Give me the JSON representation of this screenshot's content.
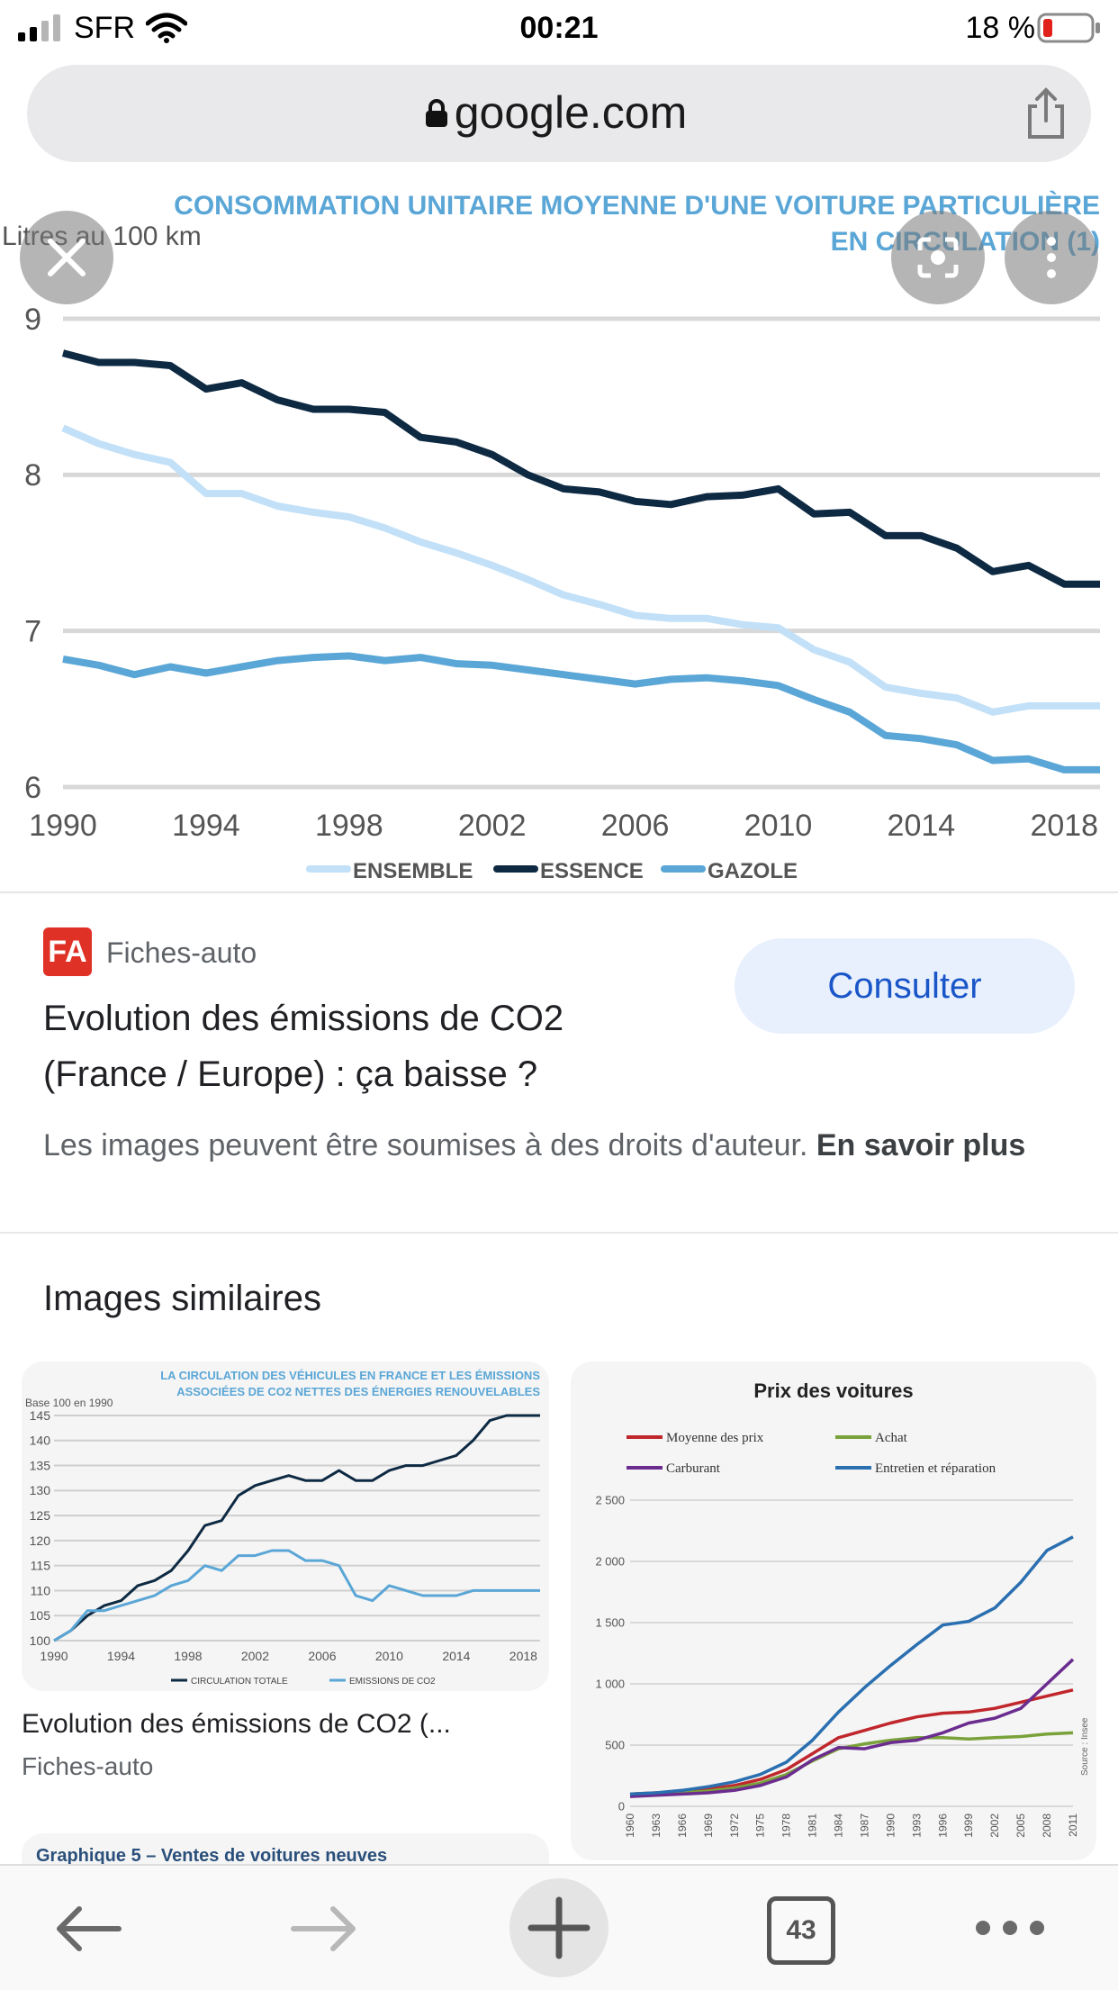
{
  "status_bar": {
    "carrier": "SFR",
    "time": "00:21",
    "battery": "18 %"
  },
  "browser": {
    "url": "google.com",
    "tab_count": "43"
  },
  "viewer": {
    "chart_data": {
      "type": "line",
      "title_line1": "CONSOMMATION UNITAIRE MOYENNE D'UNE VOITURE PARTICULIÈRE",
      "title_line2": "EN CIRCULATION (1)",
      "ylabel": "Litres au 100 km",
      "ylim": [
        6,
        9
      ],
      "yticks": [
        "9",
        "8",
        "7",
        "6"
      ],
      "xticks": [
        "1990",
        "1994",
        "1998",
        "2002",
        "2006",
        "2010",
        "2014",
        "2018"
      ],
      "x": [
        1990,
        1991,
        1992,
        1993,
        1994,
        1995,
        1996,
        1997,
        1998,
        1999,
        2000,
        2001,
        2002,
        2003,
        2004,
        2005,
        2006,
        2007,
        2008,
        2009,
        2010,
        2011,
        2012,
        2013,
        2014,
        2015,
        2016,
        2017,
        2018,
        2019
      ],
      "series": [
        {
          "name": "ENSEMBLE",
          "color": "#c2e0f7",
          "values": [
            8.3,
            8.2,
            8.13,
            8.08,
            7.88,
            7.88,
            7.8,
            7.76,
            7.73,
            7.66,
            7.57,
            7.5,
            7.42,
            7.33,
            7.23,
            7.17,
            7.1,
            7.08,
            7.08,
            7.04,
            7.02,
            6.88,
            6.8,
            6.64,
            6.6,
            6.57,
            6.48,
            6.52,
            6.52,
            6.52
          ]
        },
        {
          "name": "ESSENCE",
          "color": "#0e2a43",
          "values": [
            8.78,
            8.72,
            8.72,
            8.7,
            8.55,
            8.59,
            8.48,
            8.42,
            8.42,
            8.4,
            8.24,
            8.21,
            8.13,
            8.0,
            7.91,
            7.89,
            7.83,
            7.81,
            7.86,
            7.87,
            7.91,
            7.75,
            7.76,
            7.61,
            7.61,
            7.53,
            7.38,
            7.42,
            7.3,
            7.3
          ]
        },
        {
          "name": "GAZOLE",
          "color": "#5aa6d6",
          "values": [
            6.82,
            6.78,
            6.72,
            6.77,
            6.73,
            6.77,
            6.81,
            6.83,
            6.84,
            6.81,
            6.83,
            6.79,
            6.78,
            6.75,
            6.72,
            6.69,
            6.66,
            6.69,
            6.7,
            6.68,
            6.65,
            6.56,
            6.48,
            6.33,
            6.31,
            6.27,
            6.17,
            6.18,
            6.11,
            6.11
          ]
        }
      ]
    }
  },
  "result": {
    "source": "Fiches-auto",
    "source_logo": "FA",
    "consult_label": "Consulter",
    "title_line1": "Evolution des émissions de CO2",
    "title_line2": "(France / Europe) : ça baisse ?",
    "notice": "Les images peuvent être soumises à des droits d'auteur.",
    "notice_link": "En savoir plus"
  },
  "similar": {
    "heading": "Images similaires",
    "card1": {
      "caption": "Evolution des émissions de CO2 (...",
      "source": "Fiches-auto",
      "chart_data": {
        "type": "line",
        "title_line1": "LA CIRCULATION DES VÉHICULES EN FRANCE ET LES ÉMISSIONS",
        "title_line2": "ASSOCIÉES DE CO2 NETTES DES ÉNERGIES RENOUVELABLES",
        "ylabel": "Base 100 en 1990",
        "ylim": [
          100,
          145
        ],
        "yticks": [
          "145",
          "140",
          "135",
          "130",
          "125",
          "120",
          "115",
          "110",
          "105",
          "100"
        ],
        "xticks": [
          "1990",
          "1994",
          "1998",
          "2002",
          "2006",
          "2010",
          "2014",
          "2018"
        ],
        "x": [
          1990,
          1991,
          1992,
          1993,
          1994,
          1995,
          1996,
          1997,
          1998,
          1999,
          2000,
          2001,
          2002,
          2003,
          2004,
          2005,
          2006,
          2007,
          2008,
          2009,
          2010,
          2011,
          2012,
          2013,
          2014,
          2015,
          2016,
          2017,
          2018,
          2019
        ],
        "series": [
          {
            "name": "CIRCULATION TOTALE",
            "color": "#0e2a43",
            "values": [
              100,
              102,
              105,
              107,
              108,
              111,
              112,
              114,
              118,
              123,
              124,
              129,
              131,
              132,
              133,
              132,
              132,
              134,
              132,
              132,
              134,
              135,
              135,
              136,
              137,
              140,
              144,
              145,
              145,
              145
            ]
          },
          {
            "name": "EMISSIONS DE CO2",
            "color": "#5aa6d6",
            "values": [
              100,
              102,
              106,
              106,
              107,
              108,
              109,
              111,
              112,
              115,
              114,
              117,
              117,
              118,
              118,
              116,
              116,
              115,
              109,
              108,
              111,
              110,
              109,
              109,
              109,
              110,
              110,
              110,
              110,
              110
            ]
          }
        ]
      }
    },
    "card2": {
      "chart_data": {
        "type": "line",
        "title": "Prix des voitures",
        "ylim": [
          0,
          2500
        ],
        "yticks": [
          "2 500",
          "2 000",
          "1 500",
          "1 000",
          "500",
          "0"
        ],
        "xticks": [
          "1960",
          "1963",
          "1966",
          "1969",
          "1972",
          "1975",
          "1978",
          "1981",
          "1984",
          "1987",
          "1990",
          "1993",
          "1996",
          "1999",
          "2002",
          "2005",
          "2008",
          "2011"
        ],
        "source_label": "Source : Insee",
        "x": [
          1960,
          1963,
          1966,
          1969,
          1972,
          1975,
          1978,
          1981,
          1984,
          1987,
          1990,
          1993,
          1996,
          1999,
          2002,
          2005,
          2008,
          2011
        ],
        "series": [
          {
            "name": "Moyenne des prix",
            "color": "#c0272d",
            "values": [
              100,
              110,
              120,
              140,
              170,
              220,
              300,
              430,
              560,
              620,
              680,
              730,
              760,
              770,
              800,
              850,
              900,
              950
            ]
          },
          {
            "name": "Achat",
            "color": "#7aa23a",
            "values": [
              100,
              105,
              110,
              125,
              150,
              190,
              260,
              370,
              470,
              510,
              540,
              560,
              560,
              550,
              560,
              570,
              590,
              600
            ]
          },
          {
            "name": "Carburant",
            "color": "#6b2c8f",
            "values": [
              80,
              90,
              100,
              110,
              130,
              170,
              240,
              380,
              480,
              470,
              520,
              540,
              600,
              680,
              720,
              800,
              1000,
              1200
            ]
          },
          {
            "name": "Entretien et réparation",
            "color": "#2a6fb0",
            "values": [
              100,
              110,
              130,
              160,
              200,
              260,
              360,
              540,
              770,
              970,
              1150,
              1320,
              1480,
              1510,
              1620,
              1830,
              2090,
              2200
            ]
          }
        ]
      }
    },
    "card3": {
      "title": "Graphique 5 – Ventes de voitures neuves"
    }
  }
}
